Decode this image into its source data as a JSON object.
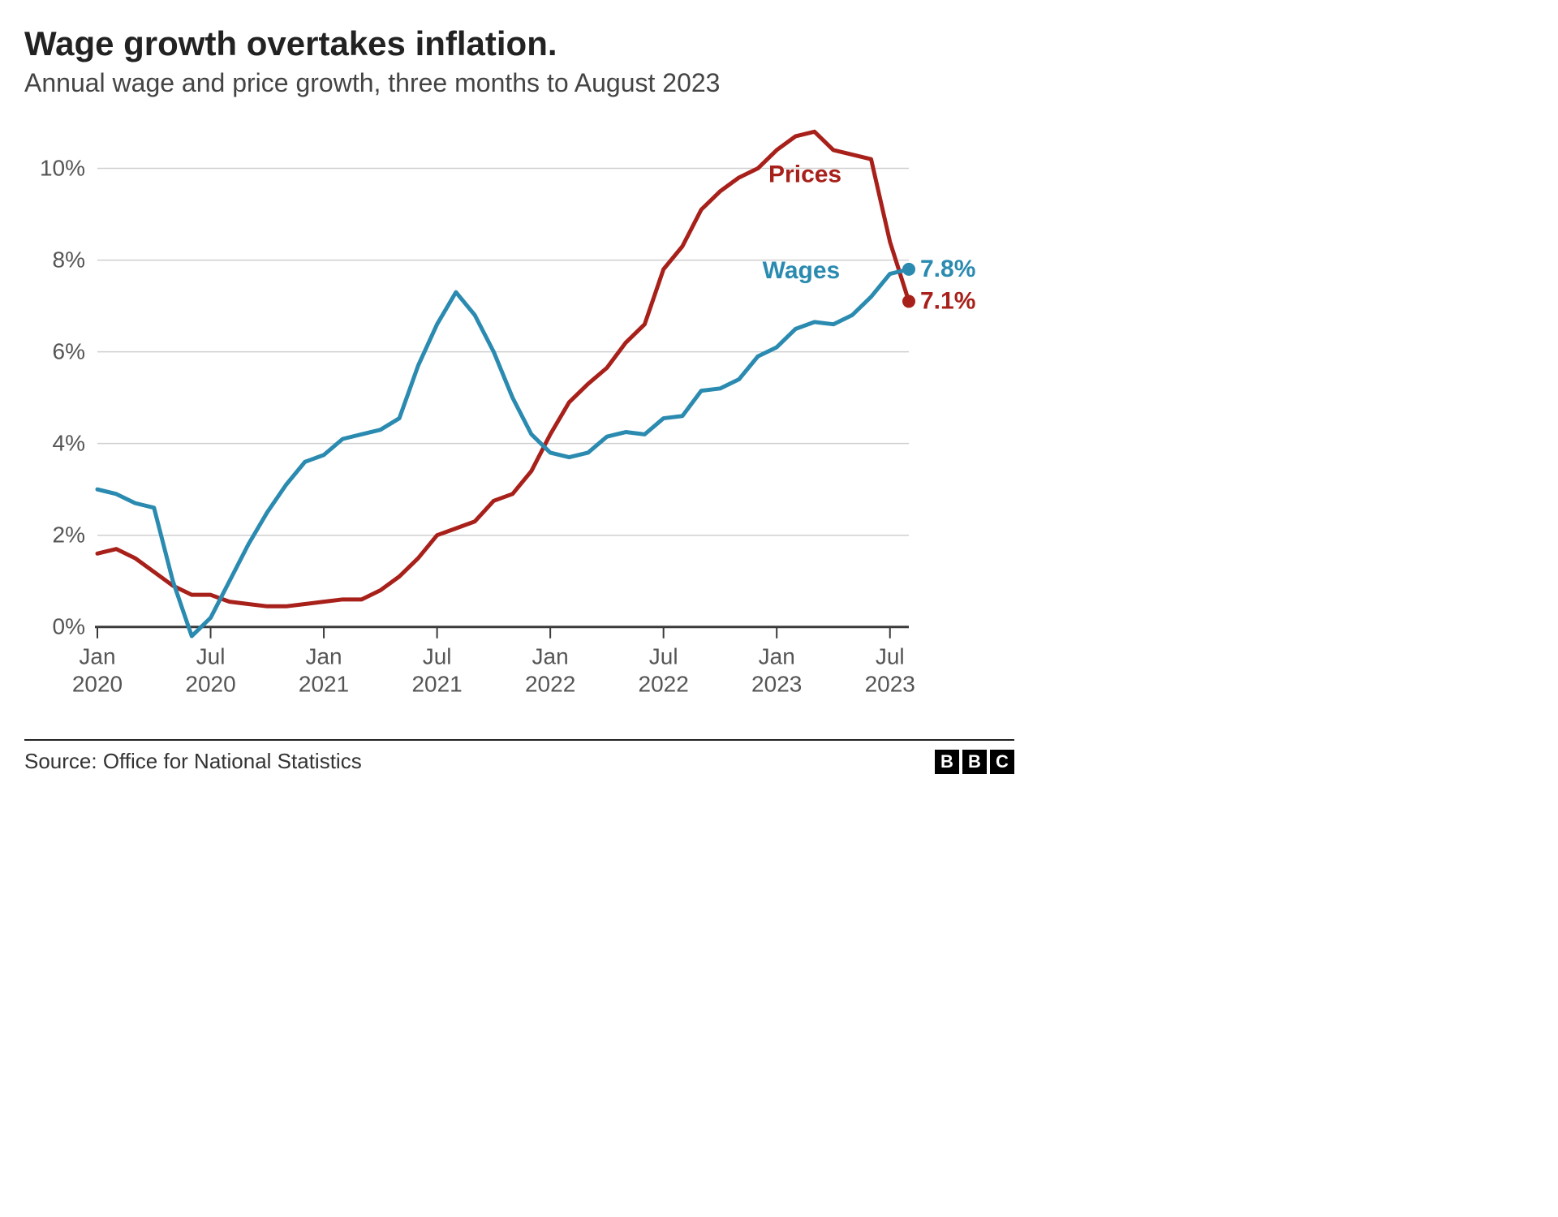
{
  "title": "Wage growth overtakes inflation.",
  "subtitle": "Annual wage and price growth, three months to August 2023",
  "source": "Source: Office for National Statistics",
  "logo_letters": [
    "B",
    "B",
    "C"
  ],
  "chart": {
    "type": "line",
    "background_color": "#ffffff",
    "grid_color": "#cfcfcf",
    "axis_color": "#3a3a3a",
    "label_color": "#555555",
    "font_size_axis": 28,
    "font_size_label": 28,
    "line_width": 5,
    "ylim": [
      -0.5,
      11
    ],
    "yticks": [
      0,
      2,
      4,
      6,
      8,
      10
    ],
    "ytick_labels": [
      "0%",
      "2%",
      "4%",
      "6%",
      "8%",
      "10%"
    ],
    "x_range": [
      0,
      43
    ],
    "xticks": [
      0,
      6,
      12,
      18,
      24,
      30,
      36,
      42
    ],
    "xtick_labels_top": [
      "Jan",
      "Jul",
      "Jan",
      "Jul",
      "Jan",
      "Jul",
      "Jan",
      "Jul"
    ],
    "xtick_labels_bot": [
      "2020",
      "2020",
      "2021",
      "2021",
      "2022",
      "2022",
      "2023",
      "2023"
    ],
    "series": {
      "prices": {
        "label": "Prices",
        "color": "#a8201a",
        "label_color": "#a8201a",
        "end_marker_color": "#a8201a",
        "end_value_label": "7.1%",
        "label_pos": {
          "x": 37.5,
          "y": 9.7
        },
        "data": [
          1.6,
          1.7,
          1.5,
          1.2,
          0.9,
          0.7,
          0.7,
          0.55,
          0.5,
          0.45,
          0.45,
          0.5,
          0.55,
          0.6,
          0.6,
          0.8,
          1.1,
          1.5,
          2.0,
          2.15,
          2.3,
          2.75,
          2.9,
          3.4,
          4.2,
          4.9,
          5.3,
          5.65,
          6.2,
          6.6,
          7.8,
          8.3,
          9.1,
          9.5,
          9.8,
          10.0,
          10.4,
          10.7,
          10.8,
          10.4,
          10.3,
          10.2,
          8.4,
          7.1
        ]
      },
      "wages": {
        "label": "Wages",
        "color": "#2a8ab0",
        "label_color": "#2a8ab0",
        "end_marker_color": "#2a8ab0",
        "end_value_label": "7.8%",
        "label_pos": {
          "x": 37.3,
          "y": 7.6
        },
        "data": [
          3.0,
          2.9,
          2.7,
          2.6,
          1.0,
          -0.2,
          0.2,
          1.0,
          1.8,
          2.5,
          3.1,
          3.6,
          3.75,
          4.1,
          4.2,
          4.3,
          4.55,
          5.7,
          6.6,
          7.3,
          6.8,
          6.0,
          5.0,
          4.2,
          3.8,
          3.7,
          3.8,
          4.15,
          4.25,
          4.2,
          4.55,
          4.6,
          5.15,
          5.2,
          5.4,
          5.9,
          6.1,
          6.5,
          6.65,
          6.6,
          6.8,
          7.2,
          7.7,
          7.8
        ]
      }
    }
  }
}
